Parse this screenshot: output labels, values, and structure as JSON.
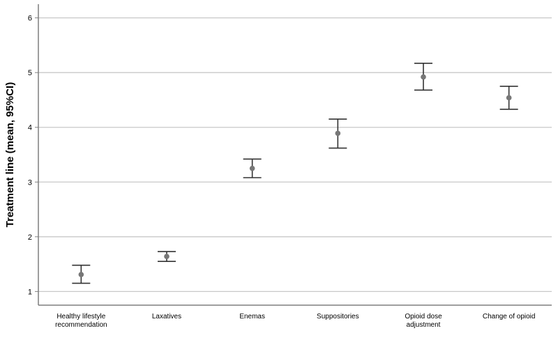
{
  "chart_data": {
    "type": "scatter",
    "subtype": "error-bar",
    "title": "",
    "xlabel": "",
    "ylabel": "Treatment line (mean, 95%CI)",
    "ylim": [
      0.75,
      6.25
    ],
    "yticks": [
      1,
      2,
      3,
      4,
      5,
      6
    ],
    "grid": "horizontal",
    "legend": "none",
    "categories": [
      [
        "Healthy lifestyle",
        "recommendation"
      ],
      [
        "Laxatives"
      ],
      [
        "Enemas"
      ],
      [
        "Suppositories"
      ],
      [
        "Opioid dose",
        "adjustment"
      ],
      [
        "Change of opioid"
      ]
    ],
    "series": [
      {
        "mean": [
          1.31,
          1.64,
          3.25,
          3.89,
          4.92,
          4.54
        ],
        "lower": [
          1.15,
          1.55,
          3.08,
          3.62,
          4.68,
          4.33
        ],
        "upper": [
          1.48,
          1.73,
          3.42,
          4.15,
          5.17,
          4.75
        ]
      }
    ],
    "colors": {
      "marker": "#777777",
      "errorbar": "#333333",
      "grid": "#c8c8c8",
      "axis": "#7f7f7f"
    }
  }
}
